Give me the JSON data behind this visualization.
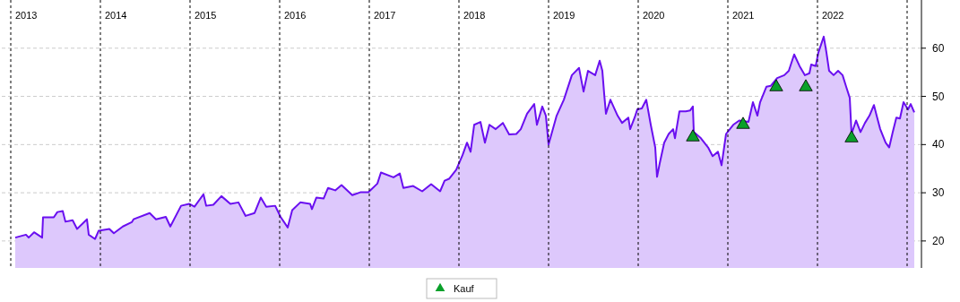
{
  "chart_data": {
    "type": "area",
    "xlim": [
      2012.9,
      2023.16
    ],
    "ylim": [
      14.4,
      70
    ],
    "yticks": [
      20,
      30,
      40,
      50,
      60
    ],
    "tick_labels": "y",
    "grid": "y",
    "legend": "bottom",
    "series": [
      {
        "color": "#6a0ff0",
        "x": [
          2013.05,
          2013.17,
          2013.2,
          2013.26,
          2013.35,
          2013.36,
          2013.48,
          2013.52,
          2013.58,
          2013.61,
          2013.69,
          2013.74,
          2013.85,
          2013.87,
          2013.94,
          2013.98,
          2014.1,
          2014.15,
          2014.25,
          2014.35,
          2014.37,
          2014.55,
          2014.62,
          2014.73,
          2014.78,
          2014.9,
          2014.99,
          2015.05,
          2015.15,
          2015.18,
          2015.26,
          2015.35,
          2015.45,
          2015.54,
          2015.62,
          2015.72,
          2015.79,
          2015.85,
          2015.95,
          2016.01,
          2016.09,
          2016.14,
          2016.23,
          2016.34,
          2016.36,
          2016.41,
          2016.49,
          2016.54,
          2016.62,
          2016.69,
          2016.81,
          2016.9,
          2016.99,
          2017.09,
          2017.13,
          2017.27,
          2017.34,
          2017.38,
          2017.49,
          2017.59,
          2017.69,
          2017.79,
          2017.84,
          2017.89,
          2017.97,
          2018.04,
          2018.09,
          2018.13,
          2018.17,
          2018.24,
          2018.29,
          2018.34,
          2018.41,
          2018.49,
          2018.56,
          2018.64,
          2018.69,
          2018.76,
          2018.84,
          2018.87,
          2018.93,
          2018.97,
          2019.0,
          2019.09,
          2019.17,
          2019.26,
          2019.34,
          2019.39,
          2019.44,
          2019.52,
          2019.56,
          2019.57,
          2019.6,
          2019.62,
          2019.64,
          2019.69,
          2019.77,
          2019.82,
          2019.89,
          2019.91,
          2019.96,
          2019.99,
          2020.04,
          2020.09,
          2020.14,
          2020.19,
          2020.21,
          2020.24,
          2020.29,
          2020.34,
          2020.39,
          2020.41,
          2020.46,
          2020.53,
          2020.58,
          2020.61,
          2020.62,
          2020.7,
          2020.78,
          2020.83,
          2020.89,
          2020.93,
          2020.98,
          2021.06,
          2021.13,
          2021.23,
          2021.28,
          2021.33,
          2021.36,
          2021.43,
          2021.48,
          2021.55,
          2021.63,
          2021.68,
          2021.74,
          2021.8,
          2021.86,
          2021.91,
          2021.93,
          2021.98,
          2022.01,
          2022.07,
          2022.1,
          2022.13,
          2022.18,
          2022.23,
          2022.28,
          2022.32,
          2022.36,
          2022.38,
          2022.43,
          2022.48,
          2022.53,
          2022.58,
          2022.63,
          2022.66,
          2022.7,
          2022.76,
          2022.8,
          2022.84,
          2022.88,
          2022.92,
          2022.96,
          2023.01,
          2023.04,
          2023.08
        ],
        "values": [
          20.7,
          21.3,
          20.7,
          21.8,
          20.7,
          24.9,
          24.9,
          26.0,
          26.2,
          24.0,
          24.3,
          22.5,
          24.5,
          21.3,
          20.4,
          22.1,
          22.5,
          21.6,
          23.0,
          23.9,
          24.5,
          25.8,
          24.5,
          25.0,
          23.0,
          27.3,
          27.7,
          27.1,
          29.7,
          27.3,
          27.5,
          29.3,
          27.7,
          28.0,
          25.2,
          25.8,
          29.0,
          27.1,
          27.3,
          25.0,
          22.8,
          26.4,
          28.0,
          27.7,
          26.6,
          29.0,
          28.8,
          31.0,
          30.5,
          31.6,
          29.5,
          30.1,
          30.1,
          31.9,
          34.2,
          33.2,
          34.0,
          31.0,
          31.4,
          30.3,
          31.8,
          30.3,
          32.5,
          32.9,
          34.8,
          37.8,
          40.4,
          38.5,
          44.1,
          44.7,
          40.4,
          44.1,
          43.2,
          44.5,
          42.1,
          42.2,
          43.2,
          46.4,
          48.4,
          44.1,
          47.9,
          46.0,
          40.0,
          46.0,
          49.3,
          54.4,
          55.9,
          51.0,
          55.3,
          54.4,
          56.8,
          57.4,
          55.3,
          50.6,
          46.4,
          49.3,
          46.0,
          44.5,
          45.6,
          43.2,
          45.6,
          47.3,
          47.5,
          49.3,
          44.1,
          39.4,
          33.3,
          36.1,
          40.4,
          42.2,
          43.2,
          41.3,
          46.9,
          46.9,
          47.1,
          47.9,
          42.6,
          41.3,
          39.4,
          37.6,
          38.5,
          35.7,
          42.2,
          44.1,
          45.0,
          44.7,
          48.8,
          46.0,
          48.8,
          52.0,
          52.2,
          53.8,
          54.4,
          55.3,
          58.7,
          56.3,
          54.4,
          54.8,
          56.6,
          56.3,
          59.1,
          62.4,
          59.1,
          55.3,
          54.4,
          55.3,
          54.4,
          52.0,
          49.7,
          42.2,
          45.0,
          42.6,
          44.5,
          46.0,
          48.2,
          46.0,
          43.2,
          40.4,
          39.4,
          42.6,
          45.6,
          45.4,
          48.8,
          47.3,
          48.4,
          46.7
        ]
      },
      {
        "type": "scatter",
        "name": "Kauf",
        "color": "#0aa02a",
        "marker": "triangle",
        "x": [
          2020.61,
          2021.17,
          2021.54,
          2021.87,
          2022.38
        ],
        "values": [
          41.9,
          44.5,
          52.3,
          52.3,
          41.7
        ]
      }
    ],
    "ref_lines": [
      {
        "axis": "x",
        "value": 2013,
        "label": "2013",
        "color": "#000000",
        "line_style": "dashed"
      },
      {
        "axis": "x",
        "value": 2014,
        "label": "2014",
        "color": "#000000",
        "line_style": "dashed"
      },
      {
        "axis": "x",
        "value": 2015,
        "label": "2015",
        "color": "#000000",
        "line_style": "dashed"
      },
      {
        "axis": "x",
        "value": 2016,
        "label": "2016",
        "color": "#000000",
        "line_style": "dashed"
      },
      {
        "axis": "x",
        "value": 2017,
        "label": "2017",
        "color": "#000000",
        "line_style": "dashed"
      },
      {
        "axis": "x",
        "value": 2018,
        "label": "2018",
        "color": "#000000",
        "line_style": "dashed"
      },
      {
        "axis": "x",
        "value": 2019,
        "label": "2019",
        "color": "#000000",
        "line_style": "dashed"
      },
      {
        "axis": "x",
        "value": 2020,
        "label": "2020",
        "color": "#000000",
        "line_style": "dashed"
      },
      {
        "axis": "x",
        "value": 2021,
        "label": "2021",
        "color": "#000000",
        "line_style": "dashed"
      },
      {
        "axis": "x",
        "value": 2022,
        "label": "2022",
        "color": "#000000",
        "line_style": "dashed"
      },
      {
        "axis": "x",
        "value": 2023,
        "label": null,
        "color": "#000000",
        "line_style": "dashed"
      }
    ]
  }
}
